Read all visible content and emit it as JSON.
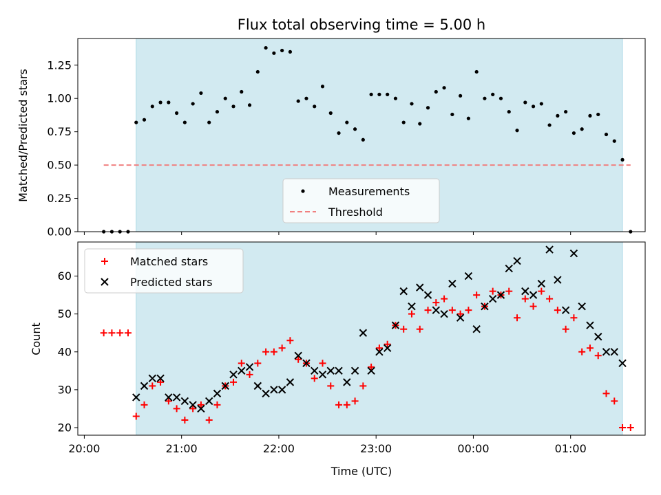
{
  "chart_data": [
    {
      "type": "scatter",
      "title": "Flux total observing time = 5.00 h",
      "xlabel": "",
      "ylabel": "Matched/Predicted stars",
      "ylim": [
        0,
        1.45
      ],
      "yticks": [
        0.0,
        0.25,
        0.5,
        0.75,
        1.0,
        1.25
      ],
      "ytick_labels": [
        "0.00",
        "0.25",
        "0.50",
        "0.75",
        "1.00",
        "1.25"
      ],
      "grid": false,
      "legend_position": "lower-center",
      "shaded_span": {
        "start": "20:32",
        "end": "01:32",
        "color": "#add8e6"
      },
      "threshold": {
        "name": "Threshold",
        "value": 0.5,
        "start": "20:12",
        "end": "01:37",
        "color": "#f08080"
      },
      "series": [
        {
          "name": "Measurements",
          "color": "#000000",
          "x": [
            "20:12",
            "20:17",
            "20:22",
            "20:27",
            "20:32",
            "20:37",
            "20:42",
            "20:47",
            "20:52",
            "20:57",
            "21:02",
            "21:07",
            "21:12",
            "21:17",
            "21:22",
            "21:27",
            "21:32",
            "21:37",
            "21:42",
            "21:47",
            "21:52",
            "21:57",
            "22:02",
            "22:07",
            "22:12",
            "22:17",
            "22:22",
            "22:27",
            "22:32",
            "22:37",
            "22:42",
            "22:47",
            "22:52",
            "22:57",
            "23:02",
            "23:07",
            "23:12",
            "23:17",
            "23:22",
            "23:27",
            "23:32",
            "23:37",
            "23:42",
            "23:47",
            "23:52",
            "23:57",
            "00:02",
            "00:07",
            "00:12",
            "00:17",
            "00:22",
            "00:27",
            "00:32",
            "00:37",
            "00:42",
            "00:47",
            "00:52",
            "00:57",
            "01:02",
            "01:07",
            "01:12",
            "01:17",
            "01:22",
            "01:27",
            "01:32",
            "01:37"
          ],
          "y": [
            0.0,
            0.0,
            0.0,
            0.0,
            0.82,
            0.84,
            0.94,
            0.97,
            0.97,
            0.89,
            0.82,
            0.96,
            1.04,
            0.82,
            0.9,
            1.0,
            0.94,
            1.05,
            0.95,
            1.2,
            1.38,
            1.34,
            1.36,
            1.35,
            0.98,
            1.0,
            0.94,
            1.09,
            0.89,
            0.74,
            0.82,
            0.77,
            0.69,
            1.03,
            1.03,
            1.03,
            1.0,
            0.82,
            0.96,
            0.81,
            0.93,
            1.05,
            1.08,
            0.88,
            1.02,
            0.85,
            1.2,
            1.0,
            1.03,
            1.0,
            0.9,
            0.76,
            0.97,
            0.94,
            0.96,
            0.8,
            0.87,
            0.9,
            0.74,
            0.77,
            0.87,
            0.88,
            0.73,
            0.68,
            0.54,
            0.0
          ]
        }
      ]
    },
    {
      "type": "scatter",
      "title": "",
      "xlabel": "Time (UTC)",
      "ylabel": "Count",
      "ylim": [
        18,
        69
      ],
      "yticks": [
        20,
        30,
        40,
        50,
        60
      ],
      "xticks": [
        "20:00",
        "21:00",
        "22:00",
        "23:00",
        "00:00",
        "01:00"
      ],
      "xlim": [
        "19:56",
        "01:46"
      ],
      "grid": false,
      "legend_position": "upper-left",
      "shaded_span": {
        "start": "20:32",
        "end": "01:32",
        "color": "#add8e6"
      },
      "series": [
        {
          "name": "Matched stars",
          "marker": "+",
          "color": "#ff0000",
          "x": [
            "20:12",
            "20:17",
            "20:22",
            "20:27",
            "20:32",
            "20:37",
            "20:42",
            "20:47",
            "20:52",
            "20:57",
            "21:02",
            "21:07",
            "21:12",
            "21:17",
            "21:22",
            "21:27",
            "21:32",
            "21:37",
            "21:42",
            "21:47",
            "21:52",
            "21:57",
            "22:02",
            "22:07",
            "22:12",
            "22:17",
            "22:22",
            "22:27",
            "22:32",
            "22:37",
            "22:42",
            "22:47",
            "22:52",
            "22:57",
            "23:02",
            "23:07",
            "23:12",
            "23:17",
            "23:22",
            "23:27",
            "23:32",
            "23:37",
            "23:42",
            "23:47",
            "23:52",
            "23:57",
            "00:02",
            "00:07",
            "00:12",
            "00:17",
            "00:22",
            "00:27",
            "00:32",
            "00:37",
            "00:42",
            "00:47",
            "00:52",
            "00:57",
            "01:02",
            "01:07",
            "01:12",
            "01:17",
            "01:22",
            "01:27",
            "01:32",
            "01:37"
          ],
          "y": [
            45,
            45,
            45,
            45,
            23,
            26,
            31,
            32,
            27,
            25,
            22,
            25,
            26,
            22,
            26,
            31,
            32,
            37,
            34,
            37,
            40,
            40,
            41,
            43,
            38,
            37,
            33,
            37,
            31,
            26,
            26,
            27,
            31,
            36,
            41,
            42,
            47,
            46,
            50,
            46,
            51,
            53,
            54,
            51,
            50,
            51,
            55,
            52,
            56,
            55,
            56,
            49,
            54,
            52,
            56,
            54,
            51,
            46,
            49,
            40,
            41,
            39,
            29,
            27,
            20,
            20
          ]
        },
        {
          "name": "Predicted stars",
          "marker": "x",
          "color": "#000000",
          "x": [
            "20:32",
            "20:37",
            "20:42",
            "20:47",
            "20:52",
            "20:57",
            "21:02",
            "21:07",
            "21:12",
            "21:17",
            "21:22",
            "21:27",
            "21:32",
            "21:37",
            "21:42",
            "21:47",
            "21:52",
            "21:57",
            "22:02",
            "22:07",
            "22:12",
            "22:17",
            "22:22",
            "22:27",
            "22:32",
            "22:37",
            "22:42",
            "22:47",
            "22:52",
            "22:57",
            "23:02",
            "23:07",
            "23:12",
            "23:17",
            "23:22",
            "23:27",
            "23:32",
            "23:37",
            "23:42",
            "23:47",
            "23:52",
            "23:57",
            "00:02",
            "00:07",
            "00:12",
            "00:17",
            "00:22",
            "00:27",
            "00:32",
            "00:37",
            "00:42",
            "00:47",
            "00:52",
            "00:57",
            "01:02",
            "01:07",
            "01:12",
            "01:17",
            "01:22",
            "01:27",
            "01:32"
          ],
          "y": [
            28,
            31,
            33,
            33,
            28,
            28,
            27,
            26,
            25,
            27,
            29,
            31,
            34,
            35,
            36,
            31,
            29,
            30,
            30,
            32,
            39,
            37,
            35,
            34,
            35,
            35,
            32,
            35,
            45,
            35,
            40,
            41,
            47,
            56,
            52,
            57,
            55,
            51,
            50,
            58,
            49,
            60,
            46,
            52,
            54,
            55,
            62,
            64,
            56,
            55,
            58,
            67,
            59,
            51,
            66,
            52,
            47,
            44,
            40,
            40,
            37
          ]
        }
      ]
    }
  ]
}
